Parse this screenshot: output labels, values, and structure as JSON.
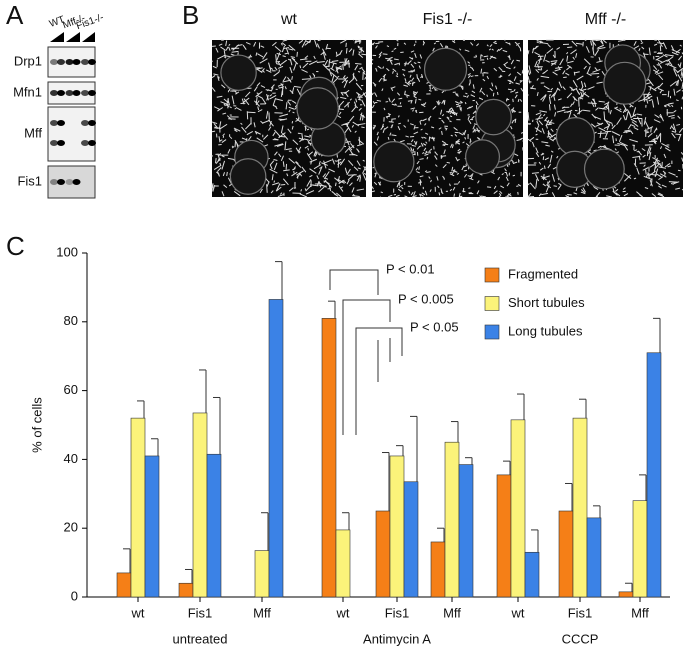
{
  "panel_labels": [
    "A",
    "B",
    "C"
  ],
  "blot": {
    "columns": [
      "WT",
      "Mff-/-",
      "Fis1-/-"
    ],
    "rows": [
      "Drp1",
      "Mfn1",
      "Mff",
      "Fis1"
    ]
  },
  "micrographs": {
    "labels": [
      "wt",
      "Fis1 -/-",
      "Mff -/-"
    ]
  },
  "chart_data": {
    "type": "bar",
    "ylabel": "% of cells",
    "categories": [
      "wt",
      "Fis1",
      "Mff",
      "wt",
      "Fis1",
      "Mff",
      "wt",
      "Fis1",
      "Mff"
    ],
    "groups": [
      "untreated",
      "Antimycin A",
      "CCCP"
    ],
    "ylim": [
      0,
      100
    ],
    "yticks": [
      0,
      20,
      40,
      60,
      80,
      100
    ],
    "legend": "top-right",
    "series": [
      {
        "name": "Fragmented",
        "color": "#f57f17",
        "values": [
          7,
          4,
          null,
          81,
          25,
          16,
          35.5,
          25,
          1.5
        ],
        "errors": [
          7,
          4,
          null,
          5,
          17,
          4,
          4,
          8,
          2.5
        ]
      },
      {
        "name": "Short tubules",
        "color": "#fbf37a",
        "values": [
          52,
          53.5,
          13.5,
          19.5,
          41,
          45,
          51.5,
          52,
          28
        ],
        "errors": [
          5,
          12.5,
          11,
          5,
          3,
          6,
          7.5,
          5.5,
          7.5
        ]
      },
      {
        "name": "Long tubules",
        "color": "#3b82e6",
        "values": [
          41,
          41.5,
          86.5,
          null,
          33.5,
          38.5,
          13,
          23,
          71
        ],
        "errors": [
          5,
          16.5,
          11,
          null,
          19,
          2,
          6.5,
          3.5,
          10
        ]
      }
    ],
    "annotations": [
      "P < 0.01",
      "P < 0.005",
      "P < 0.05"
    ]
  }
}
